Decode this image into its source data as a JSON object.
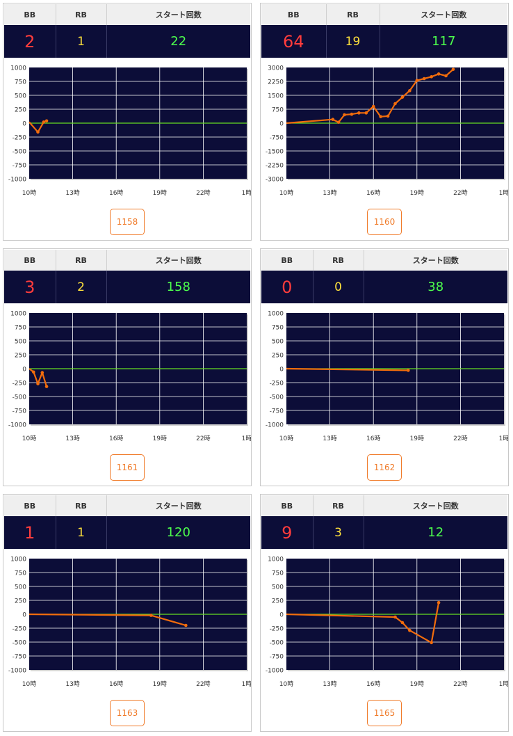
{
  "headers": {
    "bb": "BB",
    "rb": "RB",
    "start": "スタート回数"
  },
  "colors": {
    "bb": "#ff3c3c",
    "rb": "#ffe13c",
    "start": "#4dff4d",
    "line": "#f26c0c",
    "zero": "#66dd22",
    "plot_bg": "#0c0d38"
  },
  "cards": [
    {
      "bb": "2",
      "rb": "1",
      "start": "22",
      "id": "1158"
    },
    {
      "bb": "64",
      "rb": "19",
      "start": "117",
      "id": "1160"
    },
    {
      "bb": "3",
      "rb": "2",
      "start": "158",
      "id": "1161"
    },
    {
      "bb": "0",
      "rb": "0",
      "start": "38",
      "id": "1162"
    },
    {
      "bb": "1",
      "rb": "1",
      "start": "120",
      "id": "1163"
    },
    {
      "bb": "9",
      "rb": "3",
      "start": "12",
      "id": "1165"
    }
  ],
  "chart_data": [
    {
      "type": "line",
      "xlim": [
        10,
        25
      ],
      "x_ticks": [
        "10時",
        "13時",
        "16時",
        "19時",
        "22時",
        "1時"
      ],
      "ylim": [
        -1000,
        1000
      ],
      "y_ticks": [
        "1000",
        "750",
        "500",
        "250",
        "0",
        "-250",
        "-500",
        "-750",
        "-1000"
      ],
      "grid": true,
      "x": [
        10,
        10.6,
        11,
        11.2
      ],
      "y": [
        20,
        -160,
        20,
        40
      ]
    },
    {
      "type": "line",
      "xlim": [
        10,
        25
      ],
      "x_ticks": [
        "10時",
        "13時",
        "16時",
        "19時",
        "22時",
        "1時"
      ],
      "ylim": [
        -3000,
        3000
      ],
      "y_ticks": [
        "3000",
        "2250",
        "1500",
        "750",
        "0",
        "-750",
        "-1500",
        "-2250",
        "-3000"
      ],
      "grid": true,
      "x": [
        10,
        13.2,
        13.6,
        14,
        14.5,
        15,
        15.5,
        16,
        16.5,
        17,
        17.5,
        18,
        18.5,
        19,
        19.5,
        20,
        20.5,
        21,
        21.5
      ],
      "y": [
        0,
        200,
        50,
        450,
        480,
        550,
        550,
        900,
        350,
        380,
        1050,
        1400,
        1750,
        2300,
        2400,
        2500,
        2650,
        2550,
        2900
      ]
    },
    {
      "type": "line",
      "xlim": [
        10,
        25
      ],
      "x_ticks": [
        "10時",
        "13時",
        "16時",
        "19時",
        "22時",
        "1時"
      ],
      "ylim": [
        -1000,
        1000
      ],
      "y_ticks": [
        "1000",
        "750",
        "500",
        "250",
        "0",
        "-250",
        "-500",
        "-750",
        "-1000"
      ],
      "grid": true,
      "x": [
        10,
        10.3,
        10.6,
        10.9,
        11.2
      ],
      "y": [
        0,
        -60,
        -270,
        -70,
        -320
      ]
    },
    {
      "type": "line",
      "xlim": [
        10,
        25
      ],
      "x_ticks": [
        "10時",
        "13時",
        "16時",
        "19時",
        "22時",
        "1時"
      ],
      "ylim": [
        -1000,
        1000
      ],
      "y_ticks": [
        "1000",
        "750",
        "500",
        "250",
        "0",
        "-250",
        "-500",
        "-750",
        "-1000"
      ],
      "grid": true,
      "x": [
        10,
        18.4
      ],
      "y": [
        0,
        -30
      ]
    },
    {
      "type": "line",
      "xlim": [
        10,
        25
      ],
      "x_ticks": [
        "10時",
        "13時",
        "16時",
        "19時",
        "22時",
        "1時"
      ],
      "ylim": [
        -1000,
        1000
      ],
      "y_ticks": [
        "1000",
        "750",
        "500",
        "250",
        "0",
        "-250",
        "-500",
        "-750",
        "-1000"
      ],
      "grid": true,
      "x": [
        10,
        18.4,
        20.8
      ],
      "y": [
        0,
        -20,
        -200
      ]
    },
    {
      "type": "line",
      "xlim": [
        10,
        25
      ],
      "x_ticks": [
        "10時",
        "13時",
        "16時",
        "19時",
        "22時",
        "1時"
      ],
      "ylim": [
        -1000,
        1000
      ],
      "y_ticks": [
        "1000",
        "750",
        "500",
        "250",
        "0",
        "-250",
        "-500",
        "-750",
        "-1000"
      ],
      "grid": true,
      "x": [
        10,
        17.5,
        18,
        18.5,
        20,
        20.5
      ],
      "y": [
        0,
        -50,
        -150,
        -290,
        -510,
        210
      ]
    }
  ]
}
